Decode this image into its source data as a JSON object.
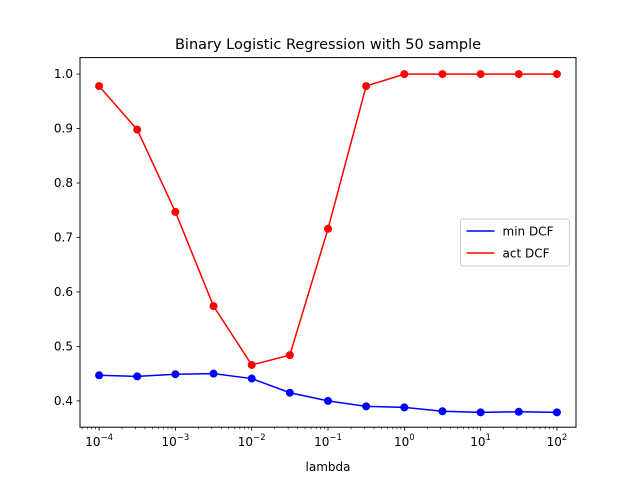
{
  "chart_data": {
    "type": "line",
    "title": "Binary Logistic Regression with 50 sample",
    "xlabel": "lambda",
    "ylabel": "",
    "xscale": "log",
    "x": [
      0.0001,
      0.000316,
      0.001,
      0.00316,
      0.01,
      0.0316,
      0.1,
      0.316,
      1,
      3.16,
      10,
      31.6,
      100
    ],
    "xlim": [
      5.62e-05,
      177.8
    ],
    "ylim": [
      0.3517,
      1.0303
    ],
    "xticks": [
      {
        "value": 0.0001,
        "base": "10",
        "exp": "−4"
      },
      {
        "value": 0.001,
        "base": "10",
        "exp": "−3"
      },
      {
        "value": 0.01,
        "base": "10",
        "exp": "−2"
      },
      {
        "value": 0.1,
        "base": "10",
        "exp": "−1"
      },
      {
        "value": 1,
        "base": "10",
        "exp": "0"
      },
      {
        "value": 10,
        "base": "10",
        "exp": "1"
      },
      {
        "value": 100,
        "base": "10",
        "exp": "2"
      }
    ],
    "yticks": [
      {
        "value": 0.4,
        "label": "0.4"
      },
      {
        "value": 0.5,
        "label": "0.5"
      },
      {
        "value": 0.6,
        "label": "0.6"
      },
      {
        "value": 0.7,
        "label": "0.7"
      },
      {
        "value": 0.8,
        "label": "0.8"
      },
      {
        "value": 0.9,
        "label": "0.9"
      },
      {
        "value": 1.0,
        "label": "1.0"
      }
    ],
    "grid": false,
    "legend_position": "center-right",
    "series": [
      {
        "name": "min DCF",
        "color": "#0000ff",
        "values": [
          0.447,
          0.445,
          0.449,
          0.45,
          0.441,
          0.415,
          0.4,
          0.39,
          0.388,
          0.381,
          0.379,
          0.38,
          0.379
        ]
      },
      {
        "name": "act DCF",
        "color": "#ff0000",
        "values": [
          0.978,
          0.898,
          0.747,
          0.574,
          0.466,
          0.484,
          0.716,
          0.978,
          1.0,
          1.0,
          1.0,
          1.0,
          1.0
        ]
      }
    ]
  }
}
